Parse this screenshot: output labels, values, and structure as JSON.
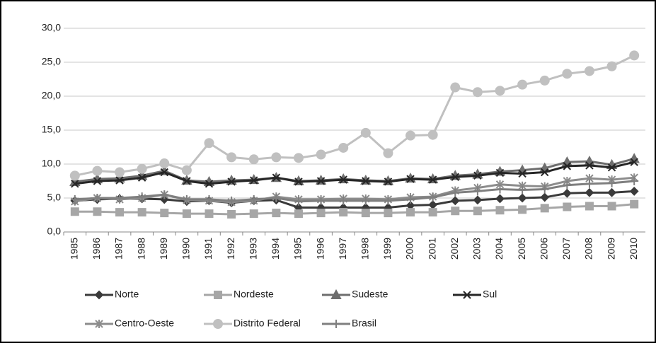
{
  "chart_data": {
    "type": "line",
    "categories": [
      "1985",
      "1986",
      "1987",
      "1988",
      "1989",
      "1990",
      "1991",
      "1992",
      "1993",
      "1994",
      "1995",
      "1996",
      "1997",
      "1998",
      "1999",
      "2000",
      "2001",
      "2002",
      "2003",
      "2004",
      "2005",
      "2006",
      "2007",
      "2008",
      "2009",
      "2010"
    ],
    "ylim": [
      0,
      30
    ],
    "yticks": [
      {
        "value": 0,
        "label": "0,0"
      },
      {
        "value": 5,
        "label": "5,0"
      },
      {
        "value": 10,
        "label": "10,0"
      },
      {
        "value": 15,
        "label": "15,0"
      },
      {
        "value": 20,
        "label": "20,0"
      },
      {
        "value": 25,
        "label": "25,0"
      },
      {
        "value": 30,
        "label": "30,0"
      }
    ],
    "grid": true,
    "series": [
      {
        "name": "Norte",
        "color": "#3a3a3a",
        "marker": "diamond",
        "values": [
          4.6,
          4.8,
          4.9,
          4.9,
          4.8,
          4.5,
          4.6,
          4.3,
          4.6,
          4.7,
          3.6,
          3.6,
          3.6,
          3.6,
          3.6,
          3.9,
          4.0,
          4.6,
          4.7,
          4.9,
          5.0,
          5.1,
          5.7,
          5.8,
          5.8,
          6.0
        ]
      },
      {
        "name": "Nordeste",
        "color": "#a6a6a6",
        "marker": "square",
        "values": [
          3.0,
          3.0,
          2.9,
          2.9,
          2.8,
          2.7,
          2.7,
          2.6,
          2.7,
          2.8,
          2.7,
          2.8,
          2.9,
          2.8,
          2.8,
          2.9,
          2.9,
          3.1,
          3.1,
          3.2,
          3.3,
          3.5,
          3.7,
          3.8,
          3.8,
          4.1
        ]
      },
      {
        "name": "Sudeste",
        "color": "#6e6e6e",
        "marker": "triangle",
        "values": [
          7.4,
          7.8,
          7.9,
          8.3,
          9.0,
          7.6,
          7.4,
          7.6,
          7.7,
          8.0,
          7.5,
          7.6,
          7.8,
          7.6,
          7.5,
          7.9,
          7.8,
          8.3,
          8.5,
          8.9,
          9.1,
          9.4,
          10.3,
          10.4,
          9.9,
          10.8
        ]
      },
      {
        "name": "Sul",
        "color": "#262626",
        "marker": "x",
        "values": [
          7.1,
          7.5,
          7.6,
          8.0,
          8.8,
          7.5,
          7.1,
          7.4,
          7.6,
          8.0,
          7.4,
          7.5,
          7.7,
          7.5,
          7.4,
          7.8,
          7.7,
          8.1,
          8.3,
          8.7,
          8.6,
          8.8,
          9.7,
          9.8,
          9.5,
          10.3
        ]
      },
      {
        "name": "Centro-Oeste",
        "color": "#8c8c8c",
        "marker": "asterisk",
        "values": [
          4.5,
          5.0,
          4.8,
          5.0,
          5.5,
          4.7,
          4.6,
          4.4,
          4.6,
          5.2,
          4.8,
          4.8,
          4.9,
          4.9,
          4.8,
          5.1,
          5.2,
          6.1,
          6.5,
          7.0,
          6.8,
          6.7,
          7.5,
          7.9,
          7.7,
          8.0
        ]
      },
      {
        "name": "Distrito Federal",
        "color": "#c0c0c0",
        "marker": "circle",
        "values": [
          8.3,
          9.0,
          8.8,
          9.3,
          10.1,
          9.1,
          13.1,
          11.0,
          10.7,
          11.0,
          10.9,
          11.4,
          12.4,
          14.6,
          11.6,
          14.2,
          14.3,
          21.3,
          20.6,
          20.8,
          21.7,
          22.3,
          23.3,
          23.7,
          24.4,
          26.0
        ]
      },
      {
        "name": "Brasil",
        "color": "#7f7f7f",
        "marker": "plus",
        "values": [
          4.8,
          5.0,
          5.0,
          5.2,
          5.5,
          4.8,
          4.8,
          4.6,
          4.8,
          5.0,
          4.5,
          4.6,
          4.6,
          4.6,
          4.6,
          4.8,
          5.1,
          5.8,
          6.0,
          6.3,
          6.2,
          6.3,
          6.9,
          7.1,
          7.2,
          7.5
        ]
      }
    ]
  }
}
